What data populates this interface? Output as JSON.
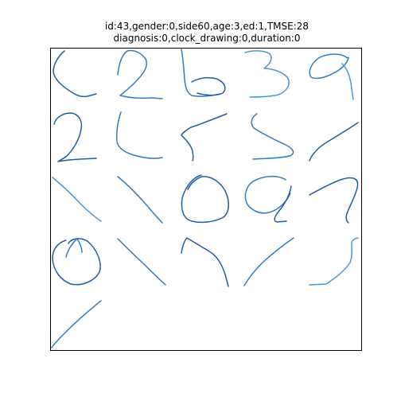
{
  "header": {
    "line1": "id:43,gender:0,side60,age:3,ed:1,TMSE:28",
    "line2": "diagnosis:0,clock_drawing:0,duration:0"
  },
  "colors": {
    "background": "#ffffff",
    "frame": "#000000",
    "ink_dark": "#1f5fa3",
    "ink_mid": "#2f7dbd",
    "ink_light": "#4a98d0"
  },
  "panel": {
    "ticks": "none",
    "grid": "off"
  }
}
